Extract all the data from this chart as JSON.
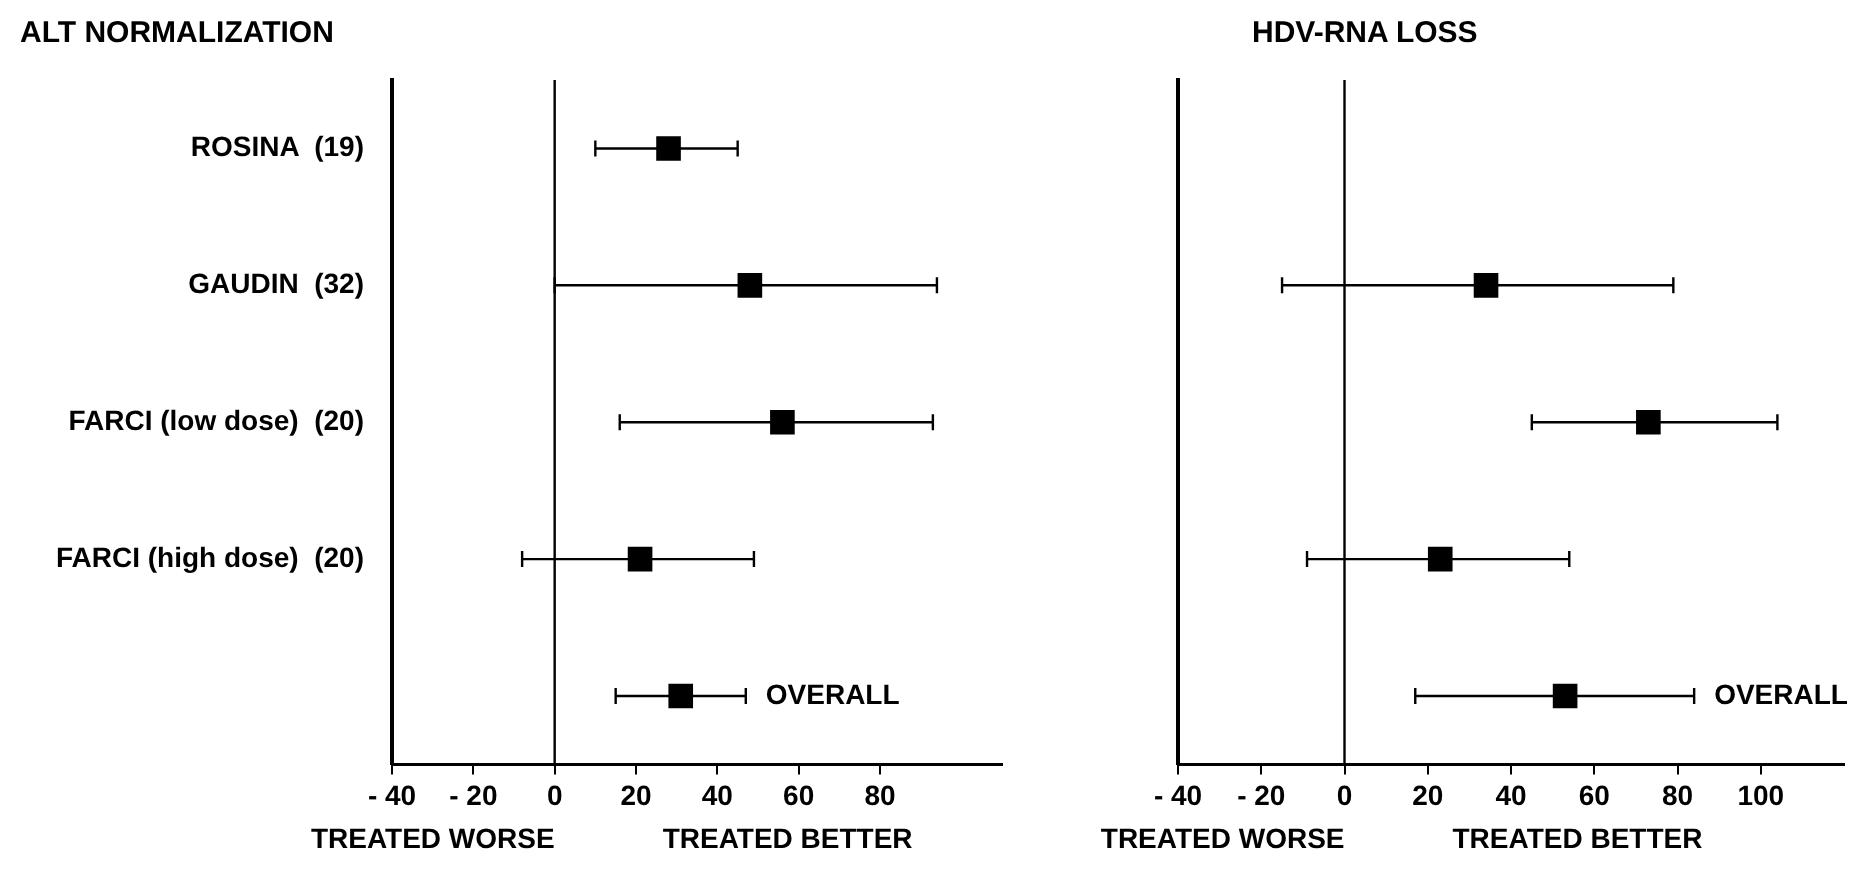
{
  "chart_data": [
    {
      "type": "scatter",
      "title": "ALT NORMALIZATION",
      "orientation": "horizontal",
      "categories": [
        "ROSINA  (19)",
        "GAUDIN  (32)",
        "FARCI (low dose)  (20)",
        "FARCI (high dose)  (20)",
        null
      ],
      "values": [
        28,
        48,
        56,
        21,
        31
      ],
      "errors": [
        [
          10,
          45
        ],
        [
          0,
          94
        ],
        [
          16,
          93
        ],
        [
          -8,
          49
        ],
        [
          15,
          47
        ]
      ],
      "color": "#000000",
      "marker": "square",
      "xlim": [
        -40,
        110
      ],
      "xticks": [
        -40,
        -20,
        0,
        20,
        40,
        60,
        80
      ],
      "ref_lines": [
        {
          "axis": "x",
          "value": 0
        }
      ],
      "annotations": [
        "OVERALL",
        "TREATED WORSE",
        "TREATED BETTER"
      ]
    },
    {
      "type": "scatter",
      "title": "HDV-RNA LOSS",
      "orientation": "horizontal",
      "categories": [
        null,
        null,
        null,
        null,
        null
      ],
      "values": [
        null,
        34,
        73,
        23,
        53
      ],
      "errors": [
        null,
        [
          -15,
          79
        ],
        [
          45,
          104
        ],
        [
          -9,
          54
        ],
        [
          17,
          84
        ]
      ],
      "color": "#000000",
      "marker": "square",
      "xlim": [
        -40,
        120
      ],
      "xticks": [
        -40,
        -20,
        0,
        20,
        40,
        60,
        80,
        100
      ],
      "ref_lines": [
        {
          "axis": "x",
          "value": 0
        }
      ],
      "tick_labels": "x",
      "annotations": [
        "OVERALL",
        "TREATED WORSE",
        "TREATED BETTER"
      ]
    }
  ]
}
